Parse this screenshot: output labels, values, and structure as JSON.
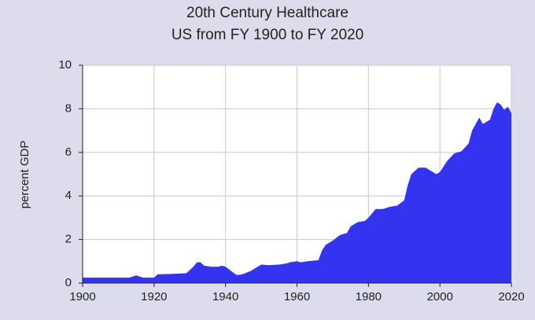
{
  "chart_data": {
    "type": "area",
    "title": "20th Century Healthcare",
    "subtitle": "US from FY 1900 to FY 2020",
    "y_label": "percent GDP",
    "x": [
      1900,
      1913,
      1914,
      1915,
      1916,
      1917,
      1920,
      1921,
      1925,
      1929,
      1931,
      1932,
      1933,
      1934,
      1936,
      1938,
      1939,
      1940,
      1942,
      1943,
      1944,
      1945,
      1947,
      1949,
      1950,
      1952,
      1955,
      1957,
      1958,
      1960,
      1961,
      1963,
      1966,
      1967,
      1968,
      1970,
      1972,
      1974,
      1975,
      1977,
      1979,
      1980,
      1982,
      1984,
      1986,
      1988,
      1990,
      1991,
      1992,
      1994,
      1996,
      1998,
      1999,
      2000,
      2002,
      2004,
      2006,
      2008,
      2009,
      2010,
      2011,
      2012,
      2014,
      2015,
      2016,
      2017,
      2018,
      2019,
      2020
    ],
    "values": [
      0.25,
      0.25,
      0.3,
      0.35,
      0.3,
      0.25,
      0.25,
      0.4,
      0.42,
      0.45,
      0.75,
      0.95,
      0.95,
      0.8,
      0.75,
      0.75,
      0.8,
      0.75,
      0.5,
      0.38,
      0.38,
      0.42,
      0.55,
      0.75,
      0.85,
      0.82,
      0.85,
      0.9,
      0.95,
      1.0,
      0.95,
      1.0,
      1.05,
      1.5,
      1.75,
      1.95,
      2.2,
      2.3,
      2.6,
      2.8,
      2.85,
      3.0,
      3.4,
      3.4,
      3.5,
      3.55,
      3.8,
      4.5,
      5.0,
      5.3,
      5.3,
      5.1,
      5.0,
      5.1,
      5.6,
      5.95,
      6.05,
      6.4,
      7.0,
      7.3,
      7.6,
      7.3,
      7.5,
      8.0,
      8.3,
      8.2,
      7.95,
      8.1,
      7.8
    ],
    "color": "#3434f0",
    "xlim": [
      1900,
      2020
    ],
    "xticks": [
      1900,
      1920,
      1940,
      1960,
      1980,
      2000,
      2020
    ],
    "ylim": [
      0,
      10
    ],
    "yticks": [
      0,
      2,
      4,
      6,
      8,
      10
    ],
    "grid": true
  }
}
